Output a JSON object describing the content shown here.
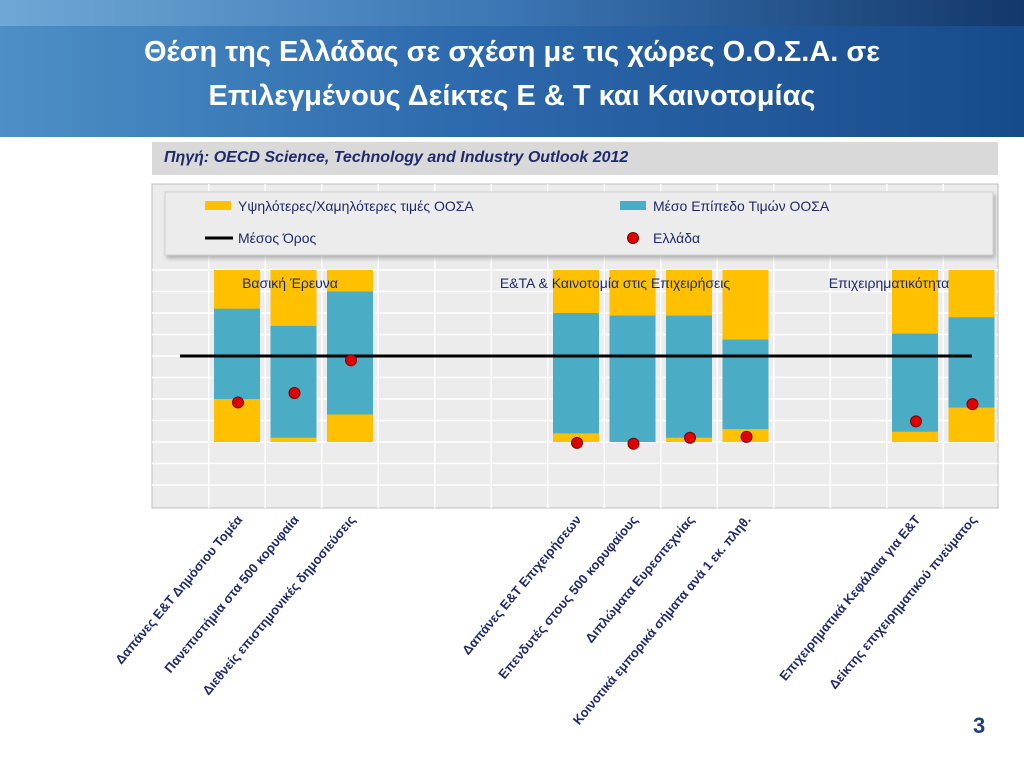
{
  "title": {
    "line1": "Θέση της Ελλάδας σε σχέση με τις χώρες Ο.Ο.Σ.Α. σε",
    "line2": "Επιλεγμένους Δείκτες Ε & Τ και Καινοτομίας"
  },
  "source": "Πηγή: OECD Science, Technology and Industry Outlook 2012",
  "page_number": "3",
  "colors": {
    "range": "#ffc000",
    "oecd_mid": "#4bacc6",
    "average": "#000000",
    "greece": "#e00000",
    "title_bar": "#2d6aad"
  },
  "chart_data": {
    "type": "bar",
    "legend": {
      "placement": "top",
      "items": [
        {
          "key": "range",
          "label": "Υψηλότερες/Χαμηλότερες τιμές ΟΟΣΑ",
          "marker": "rect"
        },
        {
          "key": "oecd_mid",
          "label": "Μέσο Επίπεδο Τιμών ΟΟΣΑ",
          "marker": "rect"
        },
        {
          "key": "average",
          "label": "Μέσος Όρος",
          "marker": "line"
        },
        {
          "key": "greece",
          "label": "Ελλάδα",
          "marker": "dot"
        }
      ]
    },
    "groups": [
      {
        "label": "Βασική Έρευνα",
        "category_indices": [
          0,
          1,
          2
        ]
      },
      {
        "label": "Ε&ΤΑ & Καινοτομία στις Επιχειρήσεις",
        "category_indices": [
          3,
          4,
          5,
          6
        ]
      },
      {
        "label": "Επιχειρηματικότητα",
        "category_indices": [
          7,
          8
        ]
      }
    ],
    "categories": [
      "Δαπάνες Ε&Τ Δημόσιου Τομέα",
      "Πανεπιστήμια στα 500 κορυφαία",
      "Διεθνείς επιστημονικές δημοσιεύσεις",
      "Δαπάνες Ε&Τ Επιχειρήσεων",
      "Επενδυτές  στους 500 κορυφαίους",
      "Διπλώματα Ευρεσιτεχνίας",
      "Κοινοτικά εμπορικά σήματα ανά 1 εκ. πληθ.",
      "Επιχειρηματικά Κεφάλαια για Ε&Τ",
      "Δείκτης επιχειρηματικού πνεύματος"
    ],
    "category_slots": [
      0,
      1,
      2,
      6,
      7,
      8,
      9,
      12,
      13
    ],
    "oecd_min": [
      0,
      0,
      0,
      0,
      0,
      0,
      0,
      0,
      0
    ],
    "oecd_max": [
      200,
      200,
      200,
      200,
      200,
      200,
      200,
      200,
      200
    ],
    "oecd_mid_low": [
      50,
      5,
      32,
      10,
      0,
      5,
      15,
      12,
      40
    ],
    "oecd_mid_high": [
      155,
      135,
      175,
      150,
      147,
      147,
      119,
      126,
      145
    ],
    "average": 100,
    "greece": [
      46,
      57,
      95,
      -1,
      -2,
      5,
      6,
      24,
      44
    ],
    "ylim": [
      -75,
      200
    ],
    "grid": true
  }
}
